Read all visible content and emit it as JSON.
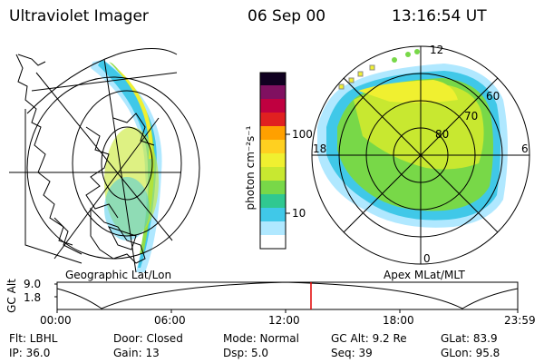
{
  "header": {
    "instrument": "Ultraviolet Imager",
    "date": "06 Sep 00",
    "time": "13:16:54 UT"
  },
  "left_panel": {
    "label": "Geographic Lat/Lon"
  },
  "right_panel": {
    "label": "Apex MLat/MLT",
    "mlat_labels": [
      "60",
      "70",
      "80"
    ],
    "mlt_labels": {
      "top": "12",
      "left": "18",
      "right": "6",
      "bottom": "0"
    }
  },
  "colorbar": {
    "unit": "photon cm⁻²s⁻¹",
    "ticks": [
      "100",
      "10"
    ],
    "colors": [
      "#ffffff",
      "#b0e8ff",
      "#40c8e8",
      "#30c890",
      "#78d848",
      "#c8e830",
      "#f0f030",
      "#ffa000",
      "#e02020",
      "#c00040",
      "#801060",
      "#100020"
    ]
  },
  "altitude_plot": {
    "ylabel": "GC Alt",
    "yticks": [
      "9.0",
      "1.8"
    ],
    "xticks": [
      "00:00",
      "06:00",
      "12:00",
      "18:00",
      "23:59"
    ],
    "marker_color": "#e00000"
  },
  "info": {
    "flt": "Flt: LBHL",
    "ip": "IP: 36.0",
    "door": "Door: Closed",
    "gain": "Gain: 13",
    "mode": "Mode: Normal",
    "dsp": "Dsp:    5.0",
    "gc_alt": "GC Alt: 9.2 Re",
    "seq": "Seq: 39",
    "glat": "GLat:  83.9",
    "glon": "GLon:  95.8"
  }
}
